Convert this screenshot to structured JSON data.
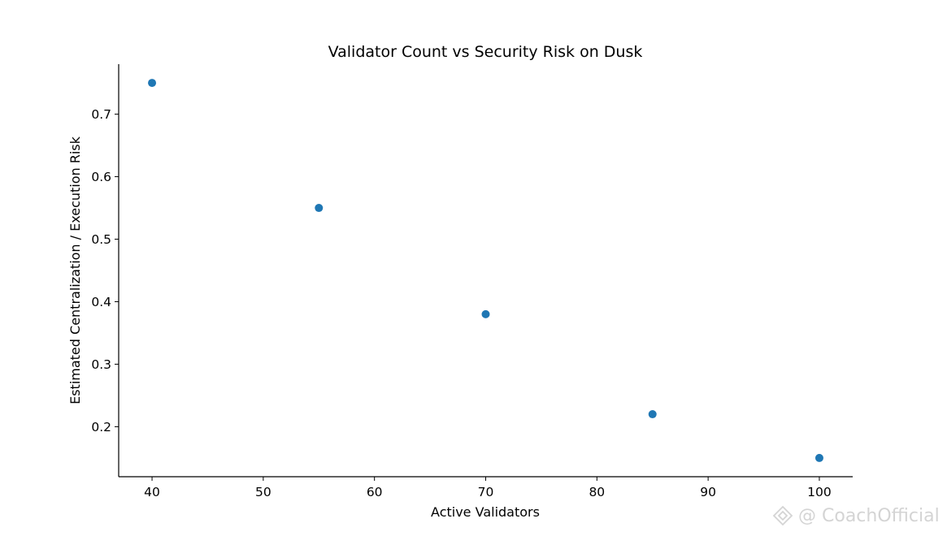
{
  "chart_data": {
    "type": "scatter",
    "title": "Validator Count vs Security Risk on Dusk",
    "xlabel": "Active Validators",
    "ylabel": "Estimated Centralization / Execution Risk",
    "x": [
      40,
      55,
      70,
      85,
      100
    ],
    "y": [
      0.75,
      0.55,
      0.38,
      0.22,
      0.15
    ],
    "xlim": [
      37,
      103
    ],
    "ylim": [
      0.12,
      0.78
    ],
    "xticks": [
      40,
      50,
      60,
      70,
      80,
      90,
      100
    ],
    "yticks": [
      0.2,
      0.3,
      0.4,
      0.5,
      0.6,
      0.7
    ],
    "xtick_labels": [
      "40",
      "50",
      "60",
      "70",
      "80",
      "90",
      "100"
    ],
    "ytick_labels": [
      "0.2",
      "0.3",
      "0.4",
      "0.5",
      "0.6",
      "0.7"
    ],
    "marker_color": "#1f77b4",
    "grid": false,
    "spines": "left-bottom"
  },
  "watermark": {
    "text": "@ CoachOfficial",
    "icon": "binance-logo-icon",
    "color": "#d4d4d4"
  }
}
